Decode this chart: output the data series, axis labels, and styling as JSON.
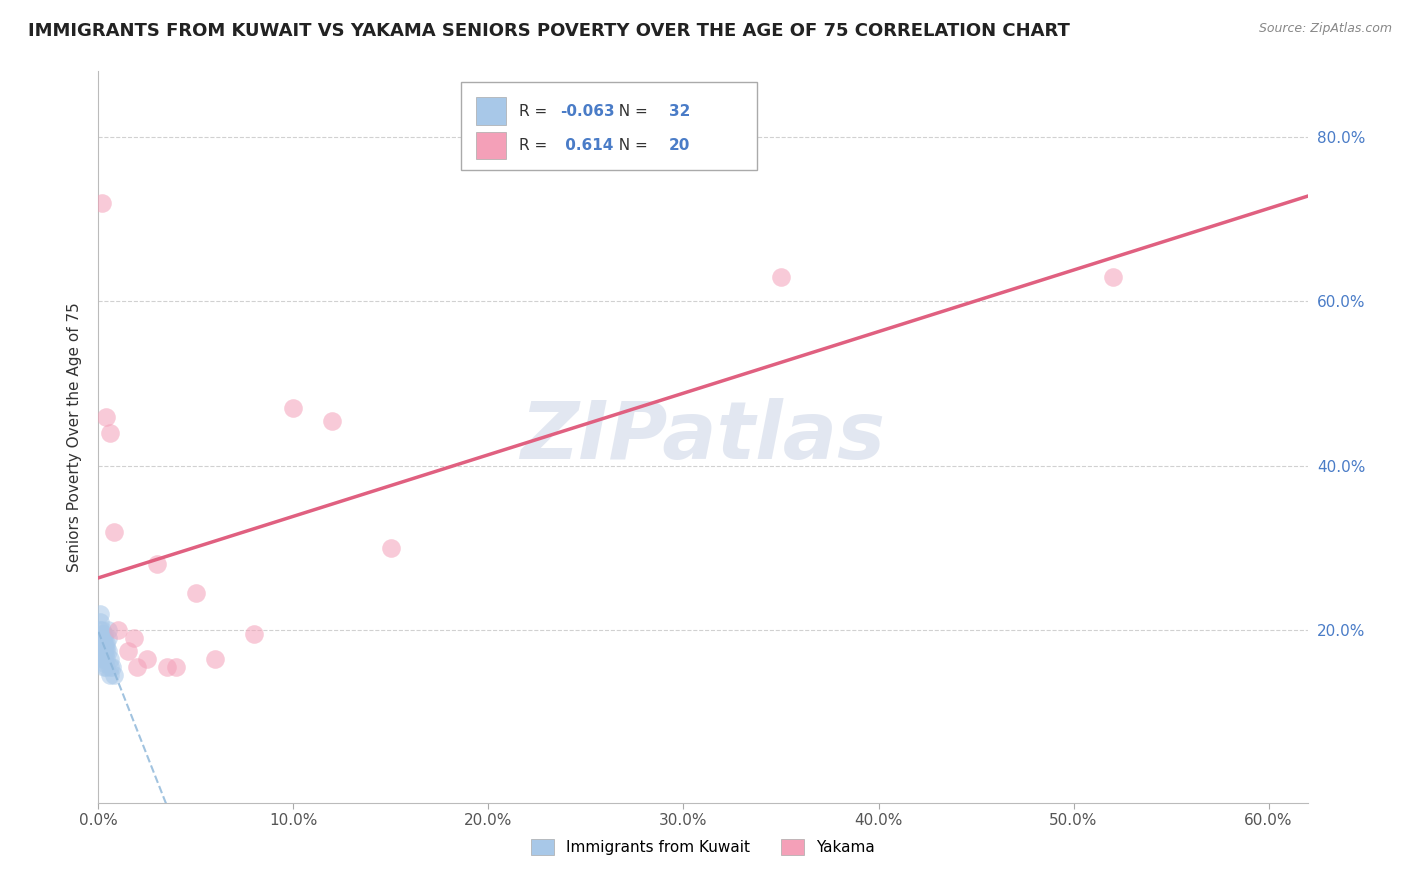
{
  "title": "IMMIGRANTS FROM KUWAIT VS YAKAMA SENIORS POVERTY OVER THE AGE OF 75 CORRELATION CHART",
  "source": "Source: ZipAtlas.com",
  "ylabel": "Seniors Poverty Over the Age of 75",
  "legend_label1": "Immigrants from Kuwait",
  "legend_label2": "Yakama",
  "r1": -0.063,
  "n1": 32,
  "r2": 0.614,
  "n2": 20,
  "color1": "#a8c8e8",
  "color2": "#f4a0b8",
  "line1_color": "#8ab4d8",
  "line2_color": "#e06080",
  "xlim": [
    0.0,
    0.62
  ],
  "ylim": [
    -0.01,
    0.88
  ],
  "xticks": [
    0.0,
    0.1,
    0.2,
    0.3,
    0.4,
    0.5,
    0.6
  ],
  "xticklabels": [
    "0.0%",
    "10.0%",
    "20.0%",
    "30.0%",
    "40.0%",
    "50.0%",
    "60.0%"
  ],
  "yticks": [
    0.2,
    0.4,
    0.6,
    0.8
  ],
  "yticklabels": [
    "20.0%",
    "40.0%",
    "60.0%",
    "80.0%"
  ],
  "grid_color": "#cccccc",
  "background_color": "#ffffff",
  "scatter1_x": [
    0.0,
    0.001,
    0.001,
    0.001,
    0.001,
    0.002,
    0.002,
    0.002,
    0.002,
    0.002,
    0.002,
    0.003,
    0.003,
    0.003,
    0.003,
    0.003,
    0.003,
    0.003,
    0.003,
    0.004,
    0.004,
    0.004,
    0.004,
    0.004,
    0.005,
    0.005,
    0.005,
    0.006,
    0.006,
    0.006,
    0.007,
    0.008
  ],
  "scatter1_y": [
    0.18,
    0.2,
    0.22,
    0.19,
    0.21,
    0.175,
    0.185,
    0.195,
    0.2,
    0.17,
    0.165,
    0.19,
    0.195,
    0.185,
    0.18,
    0.175,
    0.165,
    0.16,
    0.155,
    0.185,
    0.18,
    0.175,
    0.165,
    0.155,
    0.2,
    0.19,
    0.175,
    0.165,
    0.155,
    0.145,
    0.155,
    0.145
  ],
  "scatter2_x": [
    0.002,
    0.004,
    0.006,
    0.008,
    0.01,
    0.015,
    0.018,
    0.02,
    0.025,
    0.03,
    0.035,
    0.04,
    0.05,
    0.06,
    0.08,
    0.1,
    0.12,
    0.15,
    0.35,
    0.52
  ],
  "scatter2_y": [
    0.72,
    0.46,
    0.44,
    0.32,
    0.2,
    0.175,
    0.19,
    0.155,
    0.165,
    0.28,
    0.155,
    0.155,
    0.245,
    0.165,
    0.195,
    0.47,
    0.455,
    0.3,
    0.63,
    0.63
  ],
  "watermark": "ZIPatlas",
  "watermark_color": "#d0d8e8",
  "title_fontsize": 13,
  "axis_label_fontsize": 11,
  "tick_fontsize": 11,
  "legend_fontsize": 11,
  "scatter_size": 180,
  "scatter_alpha": 0.55,
  "r1_text": "-0.063",
  "r2_text": "0.614",
  "n1_text": "32",
  "n2_text": "20"
}
